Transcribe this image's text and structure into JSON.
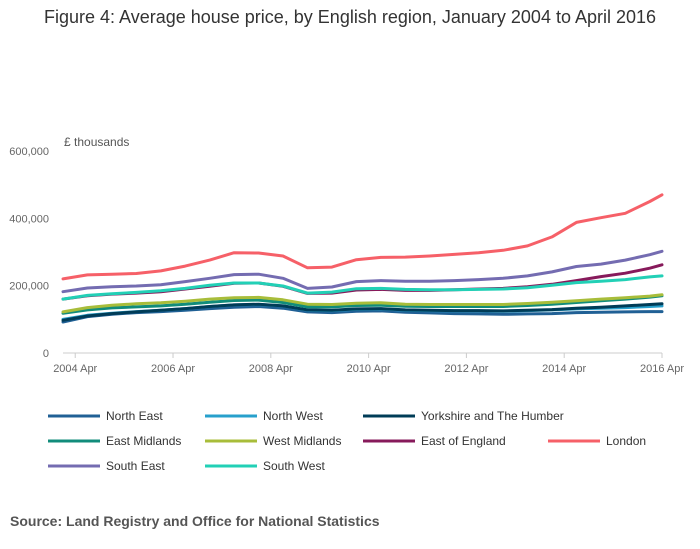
{
  "title": "Figure 4: Average house price, by English region, January 2004 to April 2016",
  "source": "Source: Land Registry and Office for National Statistics",
  "chart_data": {
    "type": "line",
    "title": "Figure 4: Average house price, by English region, January 2004 to April 2016",
    "xlabel": "",
    "ylabel": "£ thousands",
    "ylim": [
      0,
      600000
    ],
    "yticks": [
      0,
      200000,
      400000,
      600000
    ],
    "ytick_labels": [
      "0",
      "200,000",
      "400,000",
      "600,000"
    ],
    "xlim": [
      "2004-01",
      "2016-04"
    ],
    "xticks": [
      "2004-04",
      "2006-04",
      "2008-04",
      "2010-04",
      "2012-04",
      "2014-04",
      "2016-04"
    ],
    "xtick_labels": [
      "2004 Apr",
      "2006 Apr",
      "2008 Apr",
      "2010 Apr",
      "2012 Apr",
      "2014 Apr",
      "2016 Apr"
    ],
    "grid": false,
    "legend_position": "bottom",
    "x": [
      "2004-01",
      "2004-07",
      "2005-01",
      "2005-07",
      "2006-01",
      "2006-07",
      "2007-01",
      "2007-07",
      "2008-01",
      "2008-07",
      "2009-01",
      "2009-07",
      "2010-01",
      "2010-07",
      "2011-01",
      "2011-07",
      "2012-01",
      "2012-07",
      "2013-01",
      "2013-07",
      "2014-01",
      "2014-07",
      "2015-01",
      "2015-07",
      "2016-01",
      "2016-04"
    ],
    "series": [
      {
        "name": "North East",
        "color": "#206095",
        "values": [
          92000,
          108000,
          115000,
          120000,
          123000,
          127000,
          132000,
          136000,
          138000,
          133000,
          122000,
          120000,
          124000,
          125000,
          121000,
          119000,
          117000,
          116000,
          115000,
          116000,
          117000,
          120000,
          121000,
          122000,
          123000,
          123000
        ]
      },
      {
        "name": "North West",
        "color": "#27A0CC",
        "values": [
          100000,
          112000,
          118000,
          123000,
          127000,
          132000,
          138000,
          143000,
          144000,
          140000,
          127000,
          126000,
          130000,
          131000,
          127000,
          126000,
          125000,
          125000,
          124000,
          126000,
          128000,
          131000,
          133000,
          135000,
          138000,
          140000
        ]
      },
      {
        "name": "Yorkshire and The Humber",
        "color": "#003C57",
        "values": [
          97000,
          110000,
          117000,
          122000,
          127000,
          132000,
          138000,
          143000,
          145000,
          140000,
          128000,
          127000,
          131000,
          132000,
          128000,
          127000,
          126000,
          126000,
          125000,
          127000,
          129000,
          133000,
          136000,
          140000,
          144000,
          146000
        ]
      },
      {
        "name": "East Midlands",
        "color": "#118C7B",
        "values": [
          118000,
          128000,
          134000,
          137000,
          140000,
          145000,
          151000,
          156000,
          157000,
          150000,
          137000,
          137000,
          141000,
          142000,
          139000,
          138000,
          138000,
          138000,
          138000,
          141000,
          145000,
          150000,
          155000,
          160000,
          166000,
          170000
        ]
      },
      {
        "name": "West Midlands",
        "color": "#A8BD3A",
        "values": [
          122000,
          135000,
          142000,
          146000,
          149000,
          154000,
          160000,
          164000,
          165000,
          158000,
          145000,
          144000,
          148000,
          149000,
          145000,
          144000,
          144000,
          144000,
          144000,
          147000,
          151000,
          155000,
          160000,
          164000,
          169000,
          173000
        ]
      },
      {
        "name": "East of England",
        "color": "#871A5B",
        "values": [
          160000,
          170000,
          175000,
          178000,
          182000,
          190000,
          198000,
          207000,
          208000,
          198000,
          177000,
          178000,
          187000,
          189000,
          186000,
          186000,
          188000,
          190000,
          192000,
          197000,
          204000,
          215000,
          227000,
          237000,
          252000,
          262000
        ]
      },
      {
        "name": "London",
        "color": "#F66068",
        "values": [
          220000,
          232000,
          234000,
          236000,
          244000,
          258000,
          276000,
          298000,
          297000,
          288000,
          253000,
          255000,
          277000,
          284000,
          285000,
          288000,
          293000,
          298000,
          305000,
          318000,
          345000,
          388000,
          402000,
          415000,
          450000,
          470000
        ]
      },
      {
        "name": "South East",
        "color": "#746CB1",
        "values": [
          182000,
          193000,
          197000,
          199000,
          203000,
          212000,
          222000,
          233000,
          234000,
          222000,
          192000,
          196000,
          212000,
          215000,
          213000,
          213000,
          215000,
          218000,
          222000,
          229000,
          241000,
          257000,
          264000,
          276000,
          292000,
          302000
        ]
      },
      {
        "name": "South West",
        "color": "#22D0B6",
        "values": [
          160000,
          171000,
          176000,
          180000,
          185000,
          192000,
          201000,
          208000,
          208000,
          199000,
          178000,
          181000,
          191000,
          192000,
          189000,
          188000,
          188000,
          189000,
          190000,
          194000,
          201000,
          209000,
          213000,
          218000,
          226000,
          229000
        ]
      }
    ]
  }
}
